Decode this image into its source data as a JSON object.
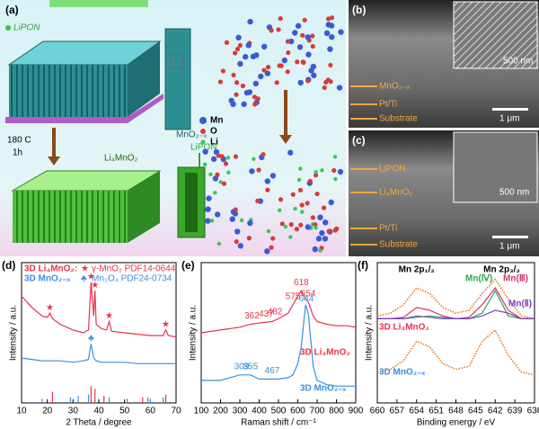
{
  "panels": {
    "a": {
      "label": "(a)",
      "lipon_top": "LiPON",
      "mno2": "MnO₂₋ₓ",
      "temp": "180 C",
      "time": "1h",
      "li4mno2": "Li₄MnO₂",
      "lipon_bottom": "LiPON",
      "legend": [
        "Mn",
        "O",
        "Li"
      ]
    },
    "b": {
      "label": "(b)",
      "scale_inset": "500 nm",
      "layers": [
        "MnO₂₋ₓ",
        "Pt/Ti",
        "Substrate"
      ],
      "scale": "1 μm"
    },
    "c": {
      "label": "(c)",
      "layers": [
        "LiPON",
        "Li₄MnO₂",
        "Pt/Ti",
        "Substrate"
      ],
      "scale_inset": "500 nm",
      "scale": "1 μm"
    }
  },
  "chart_data": [
    {
      "type": "line",
      "panel_label": "(d)",
      "x_label": "2 Theta / degree",
      "y_label": "Intensity / a.u.",
      "x": [
        10,
        14,
        18,
        20,
        21,
        22,
        25,
        30,
        34,
        36,
        37,
        38,
        38.5,
        39,
        41,
        43,
        44,
        45,
        50,
        55,
        60,
        65,
        66,
        67,
        70
      ],
      "xlim": [
        10,
        70
      ],
      "xticks": [
        10,
        20,
        30,
        40,
        50,
        60,
        70
      ],
      "ylim": [
        0,
        100
      ],
      "series": [
        {
          "name": "3D Li₄MnO₂:",
          "color": "#e8334a",
          "marker_symbol": "★",
          "marker_x": [
            21,
            37,
            38.5,
            44,
            66
          ],
          "values": [
            76,
            68,
            62,
            61,
            64,
            60,
            56,
            52,
            50,
            52,
            86,
            62,
            80,
            56,
            53,
            52,
            58,
            51,
            50,
            49,
            48,
            48,
            52,
            48,
            47
          ]
        },
        {
          "name": "3D MnO₂₋ₓ",
          "color": "#3b8ee0",
          "marker_symbol": "♣",
          "marker_x": [
            37
          ],
          "values": [
            32,
            31,
            30,
            30,
            30,
            30,
            30,
            29,
            30,
            31,
            42,
            32,
            31,
            30,
            29,
            29,
            29,
            29,
            29,
            28,
            28,
            28,
            28,
            28,
            28
          ]
        }
      ],
      "references": [
        {
          "name": "γ-MnO₂ PDF14-0644",
          "color": "#e8334a",
          "positions": [
            22,
            37,
            38.5,
            42,
            57,
            66
          ],
          "heights": [
            8,
            12,
            10,
            5,
            4,
            6
          ]
        },
        {
          "name": "Mn₃O₄ PDF24-0734",
          "color": "#3b8ee0",
          "positions": [
            18,
            29,
            32,
            36,
            44,
            51,
            59,
            60,
            65
          ],
          "heights": [
            3,
            4,
            5,
            6,
            4,
            3,
            4,
            3,
            4
          ]
        }
      ]
    },
    {
      "type": "line",
      "panel_label": "(e)",
      "x_label": "Raman shift / cm⁻¹",
      "y_label": "Intensity / a.u.",
      "x": [
        100,
        200,
        300,
        355,
        400,
        467,
        500,
        550,
        575,
        600,
        618,
        640,
        654,
        680,
        700,
        750,
        800,
        850,
        900
      ],
      "xlim": [
        100,
        900
      ],
      "xticks": [
        100,
        200,
        300,
        400,
        500,
        600,
        700,
        800,
        900
      ],
      "ylim": [
        0,
        100
      ],
      "series": [
        {
          "name": "3D Li₄MnO₂",
          "color": "#e8334a",
          "peak_labels": [
            362,
            437,
            482,
            575,
            618,
            654
          ],
          "values": [
            50,
            52,
            54,
            56,
            57,
            58,
            60,
            64,
            70,
            76,
            80,
            74,
            72,
            62,
            58,
            56,
            55,
            55,
            54
          ]
        },
        {
          "name": "3D MnO₂₋ₓ",
          "color": "#3b8ee0",
          "peak_labels": [
            309,
            355,
            467,
            644
          ],
          "values": [
            16,
            16,
            20,
            20,
            17,
            17,
            17,
            18,
            20,
            28,
            40,
            70,
            64,
            26,
            16,
            13,
            12,
            12,
            12
          ]
        }
      ]
    },
    {
      "type": "line",
      "panel_label": "(f)",
      "x_label": "Binding energy / eV",
      "y_label": "Intensity / a.u.",
      "x": [
        660,
        658,
        656,
        654,
        652,
        650,
        648,
        646,
        644,
        642,
        640,
        638,
        636
      ],
      "xlim": [
        660,
        636
      ],
      "xticks": [
        660,
        657,
        654,
        651,
        648,
        645,
        642,
        639,
        636
      ],
      "ylim": [
        0,
        100
      ],
      "annotations": [
        {
          "text": "Mn 2p₁/₂",
          "x": 654
        },
        {
          "text": "Mn 2p₃/₂",
          "x": 641
        }
      ],
      "series": [
        {
          "name": "3D Li₄MnO₂",
          "color": "#e8334a",
          "line_color": "#e07a1a",
          "dash": true,
          "values": [
            62,
            64,
            70,
            82,
            78,
            68,
            64,
            66,
            78,
            88,
            74,
            62,
            60
          ]
        },
        {
          "name": "Mn(Ⅳ)",
          "color": "#2aa84a",
          "values": [
            60,
            60,
            60,
            61,
            62,
            61,
            60,
            60,
            64,
            80,
            62,
            60,
            60
          ]
        },
        {
          "name": "Mn(Ⅲ)",
          "color": "#d6336c",
          "values": [
            60,
            60,
            61,
            68,
            66,
            62,
            60,
            61,
            70,
            82,
            66,
            60,
            60
          ]
        },
        {
          "name": "Mn(Ⅱ)",
          "color": "#7b3fc4",
          "values": [
            60,
            60,
            60,
            62,
            61,
            60,
            60,
            60,
            62,
            66,
            64,
            60,
            60
          ]
        },
        {
          "name": "3D MnO₂₋ₓ",
          "color": "#3b8ee0",
          "line_color": "#e07a1a",
          "dash": true,
          "values": [
            22,
            24,
            30,
            44,
            40,
            28,
            24,
            26,
            44,
            52,
            34,
            22,
            20
          ]
        }
      ]
    }
  ]
}
